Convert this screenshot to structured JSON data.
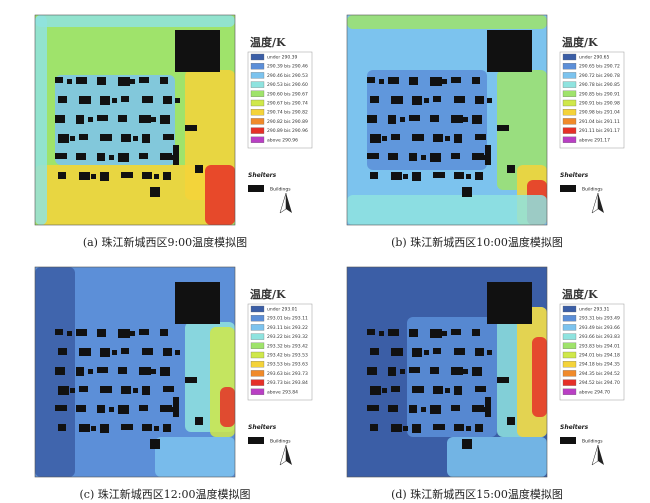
{
  "panels": [
    {
      "caption": "(a) 珠江新城西区9:00温度模拟图",
      "legend_title": "温度/K",
      "legend": [
        "under 290.39",
        "290.39 bis 290.46",
        "290.46 bis 290.53",
        "290.53 bis 290.60",
        "290.60 bis 290.67",
        "290.67 bis 290.74",
        "290.74 bis 290.82",
        "290.82 bis 290.89",
        "290.89 bis 290.96",
        "above 290.96"
      ],
      "shelters": "Shelters",
      "buildings": "Buildings"
    },
    {
      "caption": "(b) 珠江新城西区10:00温度模拟图",
      "legend_title": "温度/K",
      "legend": [
        "under 290.65",
        "290.65 bis 290.72",
        "290.72 bis 290.78",
        "290.78 bis 290.85",
        "290.85 bis 290.91",
        "290.91 bis 290.98",
        "290.98 bis 291.04",
        "291.04 bis 291.11",
        "291.11 bis 291.17",
        "above 291.17"
      ],
      "shelters": "Shelters",
      "buildings": "Buildings"
    },
    {
      "caption": "(c) 珠江新城西区12:00温度模拟图",
      "legend_title": "温度/K",
      "legend": [
        "under 293.01",
        "293.01 bis 293.11",
        "293.11 bis 293.22",
        "293.22 bis 293.32",
        "293.32 bis 293.42",
        "293.42 bis 293.53",
        "293.53 bis 293.63",
        "293.63 bis 293.73",
        "293.73 bis 293.84",
        "above 293.84"
      ],
      "shelters": "Shelters",
      "buildings": "Buildings"
    },
    {
      "caption": "(d) 珠江新城西区15:00温度模拟图",
      "legend_title": "温度/K",
      "legend": [
        "under 293.31",
        "293.31 bis 293.49",
        "293.49 bis 293.66",
        "293.66 bis 293.83",
        "293.83 bis 294.01",
        "294.01 bis 294.18",
        "294.18 bis 294.35",
        "294.35 bis 294.52",
        "294.52 bis 294.70",
        "above 294.70"
      ],
      "shelters": "Shelters",
      "buildings": "Buildings"
    }
  ]
}
